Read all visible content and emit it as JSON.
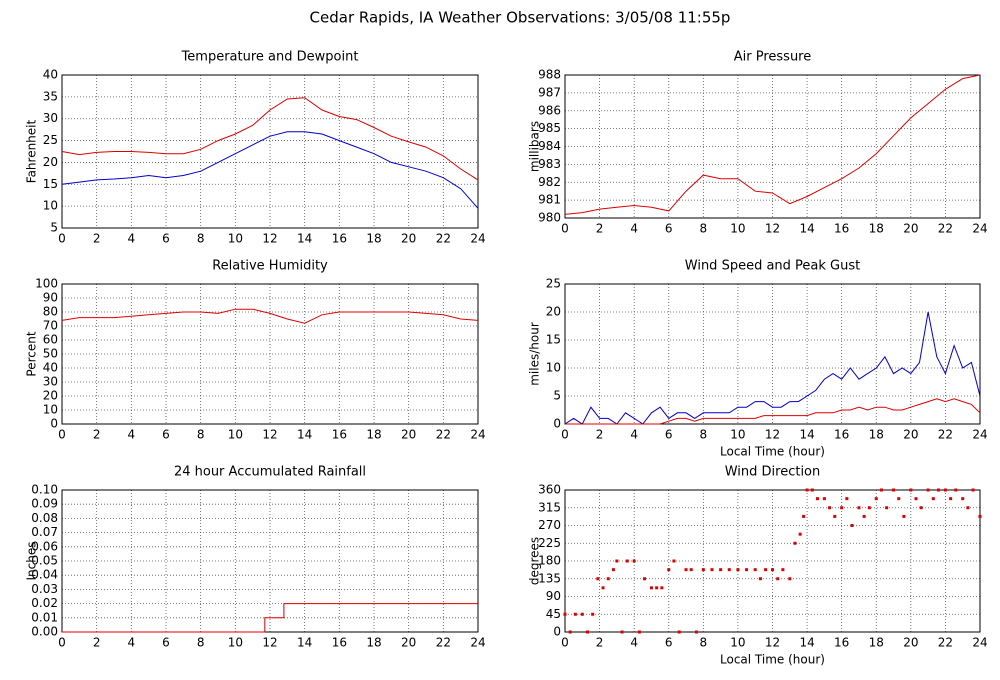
{
  "title": "Cedar Rapids, IA Weather Observations: 3/05/08 11:55p",
  "chart_data": [
    {
      "type": "line",
      "title": "Temperature and Dewpoint",
      "ylabel": "Fahrenheit",
      "x": [
        0,
        1,
        2,
        3,
        4,
        5,
        6,
        7,
        8,
        9,
        10,
        11,
        12,
        13,
        14,
        15,
        16,
        17,
        18,
        19,
        20,
        21,
        22,
        23,
        24
      ],
      "series": [
        {
          "color": "#dd0000",
          "values": [
            22.5,
            21.8,
            22.3,
            22.5,
            22.5,
            22.3,
            22,
            22,
            23,
            25,
            26.5,
            28.5,
            32,
            34.5,
            34.8,
            32,
            30.5,
            29.8,
            28,
            26,
            24.7,
            23.5,
            21.5,
            18.5,
            16
          ]
        },
        {
          "color": "#0000cc",
          "values": [
            15,
            15.5,
            16,
            16.2,
            16.5,
            17,
            16.5,
            17,
            18,
            20,
            22,
            24,
            26,
            27,
            27,
            26.5,
            25,
            23.5,
            22,
            20,
            19,
            18,
            16.5,
            14,
            9.5
          ]
        }
      ],
      "xlim": [
        0,
        24
      ],
      "xticks": [
        0,
        2,
        4,
        6,
        8,
        10,
        12,
        14,
        16,
        18,
        20,
        22,
        24
      ],
      "ylim": [
        5,
        40
      ],
      "yticks": [
        5,
        10,
        15,
        20,
        25,
        30,
        35,
        40
      ],
      "grid": true
    },
    {
      "type": "line",
      "title": "Air Pressure",
      "ylabel": "millibars",
      "x": [
        0,
        1,
        2,
        3,
        4,
        5,
        6,
        7,
        8,
        9,
        10,
        11,
        12,
        13,
        14,
        15,
        16,
        17,
        18,
        19,
        20,
        21,
        22,
        23,
        24
      ],
      "series": [
        {
          "color": "#dd0000",
          "values": [
            980.2,
            980.3,
            980.5,
            980.6,
            980.7,
            980.6,
            980.4,
            981.5,
            982.4,
            982.2,
            982.2,
            981.5,
            981.4,
            980.8,
            981.2,
            981.7,
            982.2,
            982.8,
            983.6,
            984.6,
            985.6,
            986.4,
            987.2,
            987.8,
            988
          ]
        }
      ],
      "xlim": [
        0,
        24
      ],
      "xticks": [
        0,
        2,
        4,
        6,
        8,
        10,
        12,
        14,
        16,
        18,
        20,
        22,
        24
      ],
      "ylim": [
        980,
        988
      ],
      "yticks": [
        980,
        981,
        982,
        983,
        984,
        985,
        986,
        987,
        988
      ],
      "grid": true
    },
    {
      "type": "line",
      "title": "Relative Humidity",
      "ylabel": "Percent",
      "x": [
        0,
        1,
        2,
        3,
        4,
        5,
        6,
        7,
        8,
        9,
        10,
        11,
        12,
        13,
        14,
        15,
        16,
        17,
        18,
        19,
        20,
        21,
        22,
        23,
        24
      ],
      "series": [
        {
          "color": "#dd0000",
          "values": [
            74,
            76,
            76,
            76,
            77,
            78,
            79,
            80,
            80,
            79,
            82,
            82,
            79,
            75,
            72,
            78,
            80,
            80,
            80,
            80,
            80,
            79,
            78,
            75,
            74
          ]
        }
      ],
      "xlim": [
        0,
        24
      ],
      "xticks": [
        0,
        2,
        4,
        6,
        8,
        10,
        12,
        14,
        16,
        18,
        20,
        22,
        24
      ],
      "ylim": [
        0,
        100
      ],
      "yticks": [
        0,
        10,
        20,
        30,
        40,
        50,
        60,
        70,
        80,
        90,
        100
      ],
      "grid": true
    },
    {
      "type": "line",
      "title": "Wind Speed and Peak Gust",
      "ylabel": "miles/hour",
      "xlabel": "Local Time (hour)",
      "x": [
        0,
        0.5,
        1,
        1.5,
        2,
        2.5,
        3,
        3.5,
        4,
        4.5,
        5,
        5.5,
        6,
        6.5,
        7,
        7.5,
        8,
        8.5,
        9,
        9.5,
        10,
        10.5,
        11,
        11.5,
        12,
        12.5,
        13,
        13.5,
        14,
        14.5,
        15,
        15.5,
        16,
        16.5,
        17,
        17.5,
        18,
        18.5,
        19,
        19.5,
        20,
        20.5,
        21,
        21.5,
        22,
        22.5,
        23,
        23.5,
        24
      ],
      "series": [
        {
          "color": "#0000cc",
          "values": [
            0,
            1,
            0,
            3,
            1,
            1,
            0,
            2,
            1,
            0,
            2,
            3,
            1,
            2,
            2,
            1,
            2,
            2,
            2,
            2,
            3,
            3,
            4,
            4,
            3,
            3,
            4,
            4,
            5,
            6,
            8,
            9,
            8,
            10,
            8,
            9,
            10,
            12,
            9,
            10,
            9,
            11,
            20,
            12,
            9,
            14,
            10,
            11,
            5
          ]
        },
        {
          "color": "#dd0000",
          "values": [
            0,
            0,
            0,
            0,
            0,
            0,
            0,
            0,
            0,
            0,
            0,
            0,
            0.5,
            1,
            1,
            0.5,
            1,
            1,
            1,
            1,
            1,
            1,
            1,
            1.5,
            1.5,
            1.5,
            1.5,
            1.5,
            1.5,
            2,
            2,
            2,
            2.5,
            2.5,
            3,
            2.5,
            3,
            3,
            2.5,
            2.5,
            3,
            3.5,
            4,
            4.5,
            4,
            4.5,
            4,
            3.5,
            2
          ]
        }
      ],
      "xlim": [
        0,
        24
      ],
      "xticks": [
        0,
        2,
        4,
        6,
        8,
        10,
        12,
        14,
        16,
        18,
        20,
        22,
        24
      ],
      "ylim": [
        0,
        25
      ],
      "yticks": [
        0,
        5,
        10,
        15,
        20,
        25
      ],
      "grid": true
    },
    {
      "type": "line",
      "title": "24 hour Accumulated Rainfall",
      "ylabel": "Inches",
      "x": [
        0,
        11.7,
        11.7,
        12.8,
        12.8,
        24
      ],
      "series": [
        {
          "color": "#dd0000",
          "values": [
            0,
            0,
            0.01,
            0.01,
            0.02,
            0.02
          ]
        }
      ],
      "xlim": [
        0,
        24
      ],
      "xticks": [
        0,
        2,
        4,
        6,
        8,
        10,
        12,
        14,
        16,
        18,
        20,
        22,
        24
      ],
      "ylim": [
        0,
        0.1
      ],
      "yticks": [
        {
          "value": 0,
          "label": "0.00"
        },
        0.01,
        0.02,
        0.03,
        0.04,
        0.05,
        0.06,
        0.07,
        0.08,
        0.09,
        {
          "value": 0.1,
          "label": "0.10"
        }
      ],
      "grid": true
    },
    {
      "type": "scatter",
      "title": "Wind Direction",
      "ylabel": "degrees",
      "xlabel": "Local Time (hour)",
      "x": [
        0,
        0.3,
        0.6,
        1,
        1.3,
        1.6,
        1.9,
        2.2,
        2.5,
        2.8,
        3,
        3.3,
        3.6,
        4,
        4.3,
        4.6,
        5,
        5.3,
        5.6,
        6,
        6.3,
        6.6,
        7,
        7.3,
        7.6,
        8,
        8.5,
        9,
        9.5,
        10,
        10.5,
        11,
        11.3,
        11.6,
        12,
        12.3,
        12.6,
        13,
        13.3,
        13.6,
        13.8,
        14,
        14.3,
        14.6,
        15,
        15.3,
        15.6,
        16,
        16.3,
        16.6,
        17,
        17.3,
        17.6,
        18,
        18.3,
        18.6,
        19,
        19.3,
        19.6,
        20,
        20.3,
        20.6,
        21,
        21.3,
        21.6,
        22,
        22.3,
        22.6,
        23,
        23.3,
        23.6,
        24
      ],
      "series": [
        {
          "color": "#dd0000",
          "values": [
            45,
            0,
            45,
            45,
            0,
            45,
            135,
            112,
            135,
            158,
            180,
            0,
            180,
            180,
            0,
            135,
            112,
            112,
            112,
            158,
            180,
            0,
            158,
            158,
            0,
            158,
            158,
            158,
            158,
            158,
            158,
            158,
            135,
            158,
            158,
            135,
            158,
            135,
            225,
            248,
            293,
            360,
            360,
            338,
            338,
            315,
            293,
            315,
            338,
            270,
            315,
            293,
            315,
            338,
            360,
            315,
            360,
            338,
            293,
            360,
            338,
            315,
            360,
            338,
            360,
            360,
            338,
            360,
            338,
            315,
            360,
            293
          ]
        }
      ],
      "xlim": [
        0,
        24
      ],
      "xticks": [
        0,
        2,
        4,
        6,
        8,
        10,
        12,
        14,
        16,
        18,
        20,
        22,
        24
      ],
      "ylim": [
        0,
        360
      ],
      "yticks": [
        0,
        45,
        90,
        135,
        180,
        225,
        270,
        315,
        360
      ],
      "grid": true
    }
  ]
}
